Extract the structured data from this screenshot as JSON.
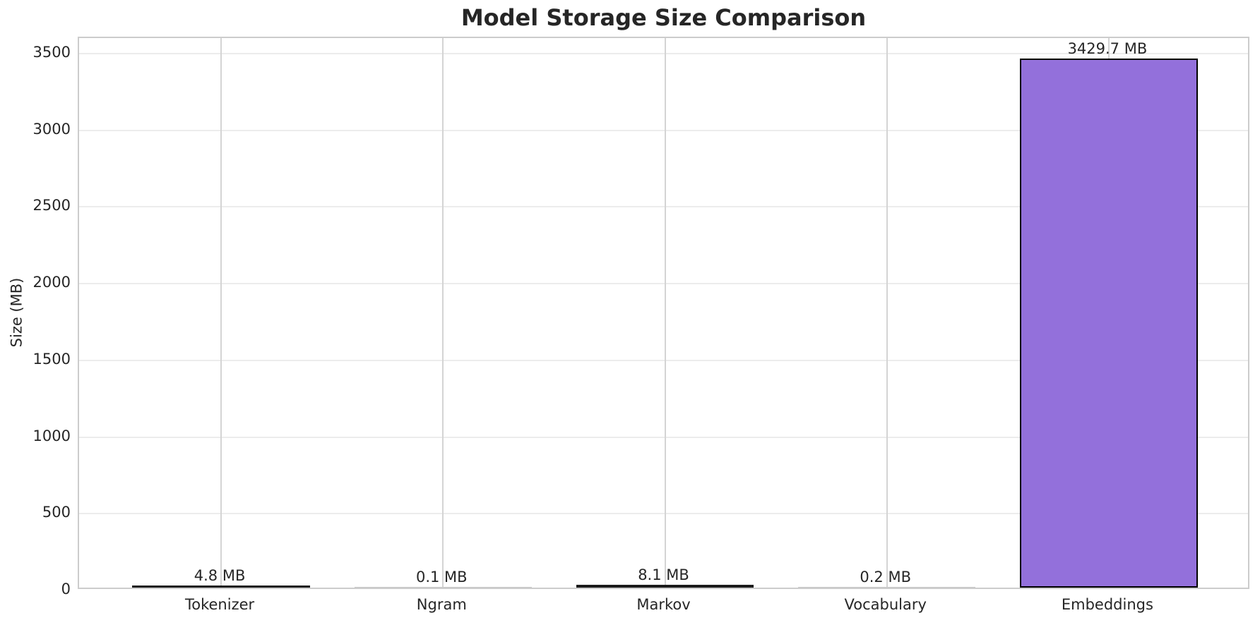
{
  "chart_data": {
    "type": "bar",
    "title": "Model Storage Size Comparison",
    "xlabel": "",
    "ylabel": "Size (MB)",
    "categories": [
      "Tokenizer",
      "Ngram",
      "Markov",
      "Vocabulary",
      "Embeddings"
    ],
    "values": [
      4.8,
      0.1,
      8.1,
      0.2,
      3429.7
    ],
    "bar_labels": [
      "4.8 MB",
      "0.1 MB",
      "8.1 MB",
      "0.2 MB",
      "3429.7 MB"
    ],
    "unit": "MB",
    "yticks": [
      0,
      500,
      1000,
      1500,
      2000,
      2500,
      3000,
      3500
    ],
    "ylim": [
      0,
      3601
    ],
    "grid": "both",
    "legend": "none",
    "bar_color": "#9370DB",
    "bar_edge_color": "#000000",
    "grid_color_horizontal": "#ececec",
    "grid_color_vertical": "#d4d4d4",
    "spine_color": "#cccccc",
    "text_color": "#262626",
    "background_color": "#ffffff"
  }
}
